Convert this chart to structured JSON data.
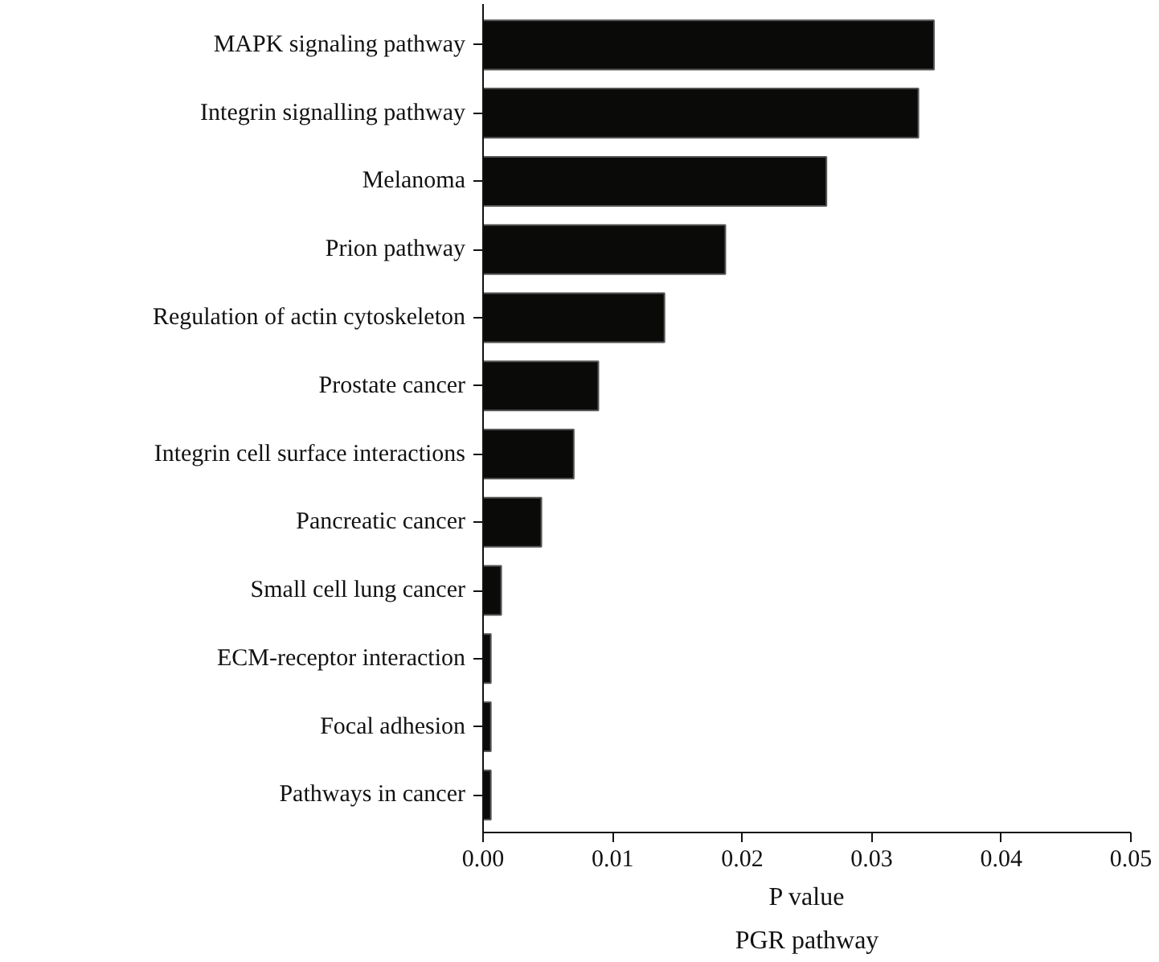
{
  "chart_data": {
    "type": "bar",
    "orientation": "horizontal",
    "title": "PGR pathway",
    "xlabel": "P value",
    "categories": [
      "MAPK signaling pathway",
      "Integrin signalling pathway",
      "Melanoma",
      "Prion pathway",
      "Regulation of actin cytoskeleton",
      "Prostate cancer",
      "Integrin cell surface interactions",
      "Pancreatic cancer",
      "Small cell lung cancer",
      "ECM-receptor interaction",
      "Focal adhesion",
      "Pathways in cancer"
    ],
    "values": [
      0.0348,
      0.0336,
      0.0265,
      0.0187,
      0.014,
      0.0089,
      0.007,
      0.0045,
      0.0014,
      0.0006,
      0.0006,
      0.0006
    ],
    "color": "#0a0a08",
    "xlim": [
      0,
      0.05
    ],
    "xticks": [
      {
        "value": 0,
        "label": "0.00"
      },
      {
        "value": 0.01,
        "label": "0.01"
      },
      {
        "value": 0.02,
        "label": "0.02"
      },
      {
        "value": 0.03,
        "label": "0.03"
      },
      {
        "value": 0.04,
        "label": "0.04"
      },
      {
        "value": 0.05,
        "label": "0.05"
      }
    ],
    "grid": false
  }
}
